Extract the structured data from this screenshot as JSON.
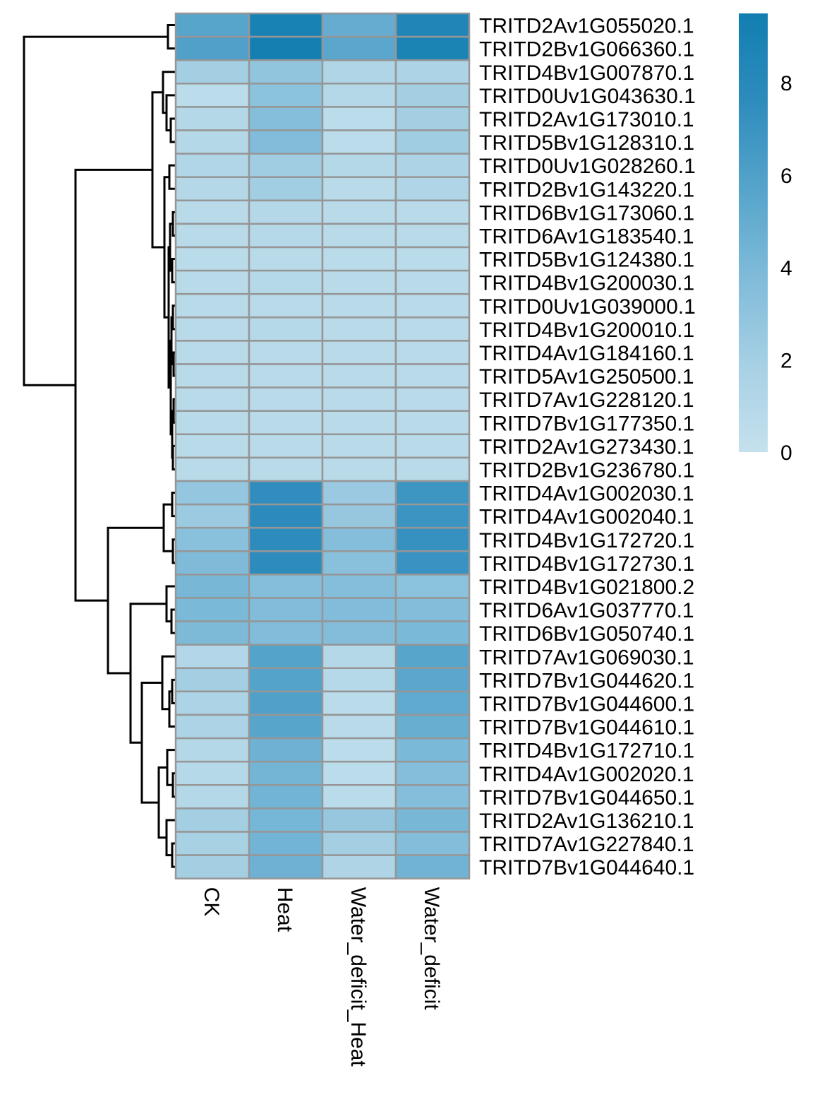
{
  "chart_data": {
    "type": "heatmap",
    "columns": [
      "CK",
      "Heat",
      "Water_deficit_Heat",
      "Water_deficit"
    ],
    "rows": [
      "TRITD2Av1G055020.1",
      "TRITD2Bv1G066360.1",
      "TRITD4Bv1G007870.1",
      "TRITD0Uv1G043630.1",
      "TRITD2Av1G173010.1",
      "TRITD5Bv1G128310.1",
      "TRITD0Uv1G028260.1",
      "TRITD2Bv1G143220.1",
      "TRITD6Bv1G173060.1",
      "TRITD6Av1G183540.1",
      "TRITD5Bv1G124380.1",
      "TRITD4Bv1G200030.1",
      "TRITD0Uv1G039000.1",
      "TRITD4Bv1G200010.1",
      "TRITD4Av1G184160.1",
      "TRITD5Av1G250500.1",
      "TRITD7Av1G228120.1",
      "TRITD7Bv1G177350.1",
      "TRITD2Av1G273430.1",
      "TRITD2Bv1G236780.1",
      "TRITD4Av1G002030.1",
      "TRITD4Av1G002040.1",
      "TRITD4Bv1G172720.1",
      "TRITD4Bv1G172730.1",
      "TRITD4Bv1G021800.2",
      "TRITD6Av1G037770.1",
      "TRITD6Bv1G050740.1",
      "TRITD7Av1G069030.1",
      "TRITD7Bv1G044620.1",
      "TRITD7Bv1G044600.1",
      "TRITD7Bv1G044610.1",
      "TRITD4Bv1G172710.1",
      "TRITD4Av1G002020.1",
      "TRITD7Bv1G044650.1",
      "TRITD2Av1G136210.1",
      "TRITD7Av1G227840.1",
      "TRITD7Bv1G044640.1"
    ],
    "values": [
      [
        5.6,
        9.0,
        5.0,
        8.5
      ],
      [
        6.0,
        9.3,
        5.5,
        8.8
      ],
      [
        2.0,
        2.9,
        1.3,
        1.5
      ],
      [
        0.6,
        3.2,
        1.0,
        2.0
      ],
      [
        1.0,
        3.5,
        0.6,
        2.0
      ],
      [
        1.0,
        3.7,
        0.6,
        2.2
      ],
      [
        1.2,
        2.2,
        1.0,
        1.5
      ],
      [
        1.0,
        2.1,
        0.8,
        1.3
      ],
      [
        0.8,
        1.0,
        0.8,
        0.8
      ],
      [
        0.8,
        0.9,
        0.8,
        0.8
      ],
      [
        0.7,
        0.8,
        0.7,
        0.7
      ],
      [
        0.8,
        0.9,
        0.8,
        0.8
      ],
      [
        0.8,
        0.8,
        0.8,
        0.8
      ],
      [
        0.8,
        0.9,
        0.8,
        0.8
      ],
      [
        0.8,
        0.8,
        0.8,
        0.8
      ],
      [
        0.8,
        0.8,
        0.8,
        0.8
      ],
      [
        0.8,
        0.8,
        0.8,
        0.8
      ],
      [
        0.8,
        0.8,
        0.8,
        0.8
      ],
      [
        0.8,
        0.8,
        0.8,
        0.8
      ],
      [
        0.8,
        0.8,
        0.8,
        0.8
      ],
      [
        2.8,
        7.5,
        2.5,
        6.9
      ],
      [
        2.4,
        7.7,
        2.7,
        7.0
      ],
      [
        3.3,
        7.6,
        3.5,
        7.2
      ],
      [
        3.8,
        7.6,
        3.3,
        7.1
      ],
      [
        4.1,
        3.5,
        3.5,
        3.2
      ],
      [
        4.0,
        3.7,
        3.7,
        3.6
      ],
      [
        3.9,
        3.7,
        3.6,
        4.0
      ],
      [
        1.1,
        5.8,
        1.0,
        5.6
      ],
      [
        2.0,
        5.8,
        0.9,
        5.5
      ],
      [
        1.5,
        6.0,
        0.7,
        5.2
      ],
      [
        1.5,
        5.6,
        0.8,
        4.9
      ],
      [
        1.0,
        4.6,
        0.6,
        4.0
      ],
      [
        0.9,
        4.3,
        0.6,
        3.5
      ],
      [
        1.0,
        4.4,
        0.7,
        3.5
      ],
      [
        2.0,
        4.2,
        2.7,
        4.1
      ],
      [
        1.8,
        4.4,
        2.0,
        3.6
      ],
      [
        2.0,
        4.6,
        1.4,
        4.5
      ]
    ],
    "color_scale": {
      "min": 0,
      "max": 9.5,
      "ticks": [
        0,
        2,
        4,
        6,
        8
      ],
      "colors": [
        "#c5e1ed",
        "#a6d0e4",
        "#7fbbd9",
        "#56a4cb",
        "#2e8cbd",
        "#127eb1"
      ]
    },
    "legend_placement": "right",
    "row_dendrogram": true,
    "col_dendrogram": false
  }
}
